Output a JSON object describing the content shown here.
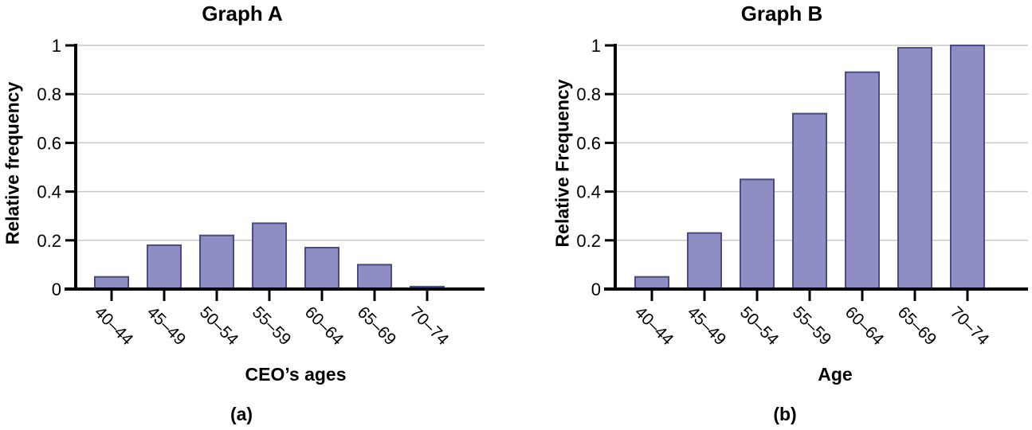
{
  "figure": {
    "background": "#ffffff"
  },
  "colors": {
    "bar_fill": "#8e8ec4",
    "bar_stroke": "#4a4a85",
    "gridline": "#c9c9c9",
    "axis": "#000000",
    "text": "#000000"
  },
  "chart_data": [
    {
      "type": "bar",
      "title": "Graph A",
      "caption": "(a)",
      "xlabel": "CEO’s ages",
      "ylabel": "Relative frequency",
      "categories": [
        "40–44",
        "45–49",
        "50–54",
        "55–59",
        "60–64",
        "65–69",
        "70–74"
      ],
      "values": [
        0.05,
        0.18,
        0.22,
        0.27,
        0.17,
        0.1,
        0.01
      ],
      "ylim": [
        0,
        1
      ],
      "yticks": [
        0,
        0.2,
        0.4,
        0.6,
        0.8,
        1
      ],
      "ytick_labels": [
        "0",
        "0.2",
        "0.4",
        "0.6",
        "0.8",
        "1"
      ],
      "grid": true,
      "legend": null
    },
    {
      "type": "bar",
      "title": "Graph B",
      "caption": "(b)",
      "xlabel": "Age",
      "ylabel": "Relative Frequency",
      "categories": [
        "40–44",
        "45–49",
        "50–54",
        "55–59",
        "60–64",
        "65–69",
        "70–74"
      ],
      "values": [
        0.05,
        0.23,
        0.45,
        0.72,
        0.89,
        0.99,
        1.0
      ],
      "ylim": [
        0,
        1
      ],
      "yticks": [
        0,
        0.2,
        0.4,
        0.6,
        0.8,
        1
      ],
      "ytick_labels": [
        "0",
        "0.2",
        "0.4",
        "0.6",
        "0.8",
        "1"
      ],
      "grid": true,
      "legend": null
    }
  ]
}
